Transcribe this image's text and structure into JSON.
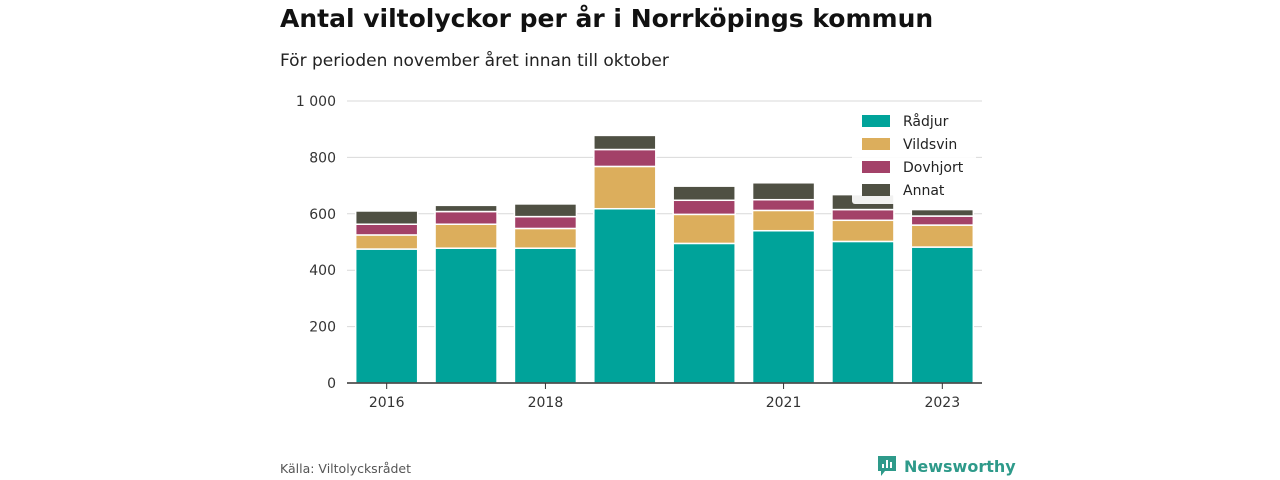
{
  "header": {
    "title": "Antal viltolyckor per år i Norrköpings kommun",
    "subtitle": "För perioden november året innan till oktober"
  },
  "footer": {
    "source": "Källa: Viltolycksrådet",
    "brand": "Newsworthy",
    "brand_icon": "newsworthy-logo-icon"
  },
  "colors": {
    "Rådjur": "#00a39a",
    "Vildsvin": "#dcae5c",
    "Dovhjort": "#a34168",
    "Annat": "#4f5043"
  },
  "chart_data": {
    "type": "bar",
    "stacked": true,
    "categories": [
      "2016",
      "2017",
      "2018",
      "2019",
      "2020",
      "2021",
      "2022",
      "2023"
    ],
    "x_tick_labels": [
      "2016",
      "",
      "2018",
      "",
      "",
      "2021",
      "",
      "2023"
    ],
    "series": [
      {
        "name": "Rådjur",
        "values": [
          475,
          478,
          478,
          618,
          495,
          540,
          502,
          482
        ]
      },
      {
        "name": "Vildsvin",
        "values": [
          50,
          85,
          70,
          150,
          103,
          72,
          75,
          78
        ]
      },
      {
        "name": "Dovhjort",
        "values": [
          38,
          45,
          42,
          60,
          50,
          38,
          38,
          32
        ]
      },
      {
        "name": "Annat",
        "values": [
          47,
          22,
          45,
          50,
          50,
          60,
          53,
          23
        ]
      }
    ],
    "ylim": [
      0,
      1000
    ],
    "y_ticks": [
      0,
      200,
      400,
      600,
      800,
      1000
    ],
    "y_tick_labels": [
      "0",
      "200",
      "400",
      "600",
      "800",
      "1 000"
    ],
    "xlabel": "",
    "ylabel": "",
    "grid": true,
    "legend_position": "top-right"
  }
}
